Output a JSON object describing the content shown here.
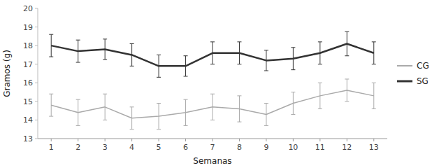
{
  "chart_data": {
    "type": "line",
    "xlabel": "Semanas",
    "ylabel": "Gramos (g)",
    "x": [
      1,
      2,
      3,
      4,
      5,
      6,
      7,
      8,
      9,
      10,
      11,
      12,
      13
    ],
    "series": [
      {
        "name": "CG",
        "color": "#aaaaaa",
        "values": [
          14.8,
          14.4,
          14.7,
          14.1,
          14.2,
          14.4,
          14.7,
          14.6,
          14.3,
          14.9,
          15.3,
          15.6,
          15.3
        ],
        "errors": [
          0.6,
          0.7,
          0.7,
          0.6,
          0.7,
          0.7,
          0.7,
          0.7,
          0.6,
          0.6,
          0.7,
          0.6,
          0.7
        ]
      },
      {
        "name": "SG",
        "color": "#333333",
        "values": [
          18.0,
          17.7,
          17.8,
          17.5,
          16.9,
          16.9,
          17.6,
          17.6,
          17.2,
          17.3,
          17.6,
          18.1,
          17.6
        ],
        "errors": [
          0.6,
          0.6,
          0.55,
          0.6,
          0.6,
          0.55,
          0.6,
          0.6,
          0.55,
          0.6,
          0.6,
          0.65,
          0.6
        ]
      }
    ],
    "xlim": [
      0.5,
      13.5
    ],
    "xticks": [
      1,
      2,
      3,
      4,
      5,
      6,
      7,
      8,
      9,
      10,
      11,
      12,
      13
    ],
    "ylim": [
      13,
      20
    ],
    "yticks": [
      13,
      14,
      15,
      16,
      17,
      18,
      19,
      20
    ],
    "grid": false,
    "legend": "right"
  }
}
